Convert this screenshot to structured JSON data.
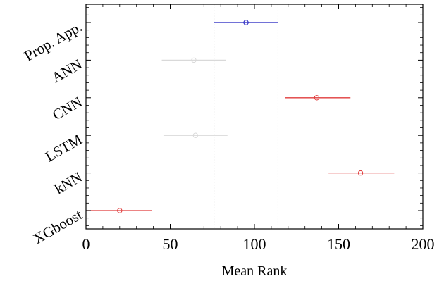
{
  "chart_data": {
    "type": "interval",
    "title": "",
    "xlabel": "Mean Rank",
    "ylabel": "",
    "xlim": [
      0,
      200
    ],
    "x_ticks": [
      0,
      50,
      100,
      150,
      200
    ],
    "categories": [
      "Prop. App.",
      "ANN",
      "CNN",
      "LSTM",
      "kNN",
      "XGboost"
    ],
    "intervals": [
      {
        "category": "Prop. App.",
        "mean": 95,
        "low": 76,
        "high": 114,
        "color": "#1f1fbf"
      },
      {
        "category": "ANN",
        "mean": 64,
        "low": 45,
        "high": 83,
        "color": "#d9d9d9"
      },
      {
        "category": "CNN",
        "mean": 137,
        "low": 118,
        "high": 157,
        "color": "#e03b3b"
      },
      {
        "category": "LSTM",
        "mean": 65,
        "low": 46,
        "high": 84,
        "color": "#d9d9d9"
      },
      {
        "category": "kNN",
        "mean": 163,
        "low": 144,
        "high": 183,
        "color": "#e03b3b"
      },
      {
        "category": "XGboost",
        "mean": 20,
        "low": 0,
        "high": 39,
        "color": "#e03b3b"
      }
    ],
    "reference_lines": [
      76,
      114
    ],
    "reference_color": "#c8c8c8",
    "grid": false
  }
}
